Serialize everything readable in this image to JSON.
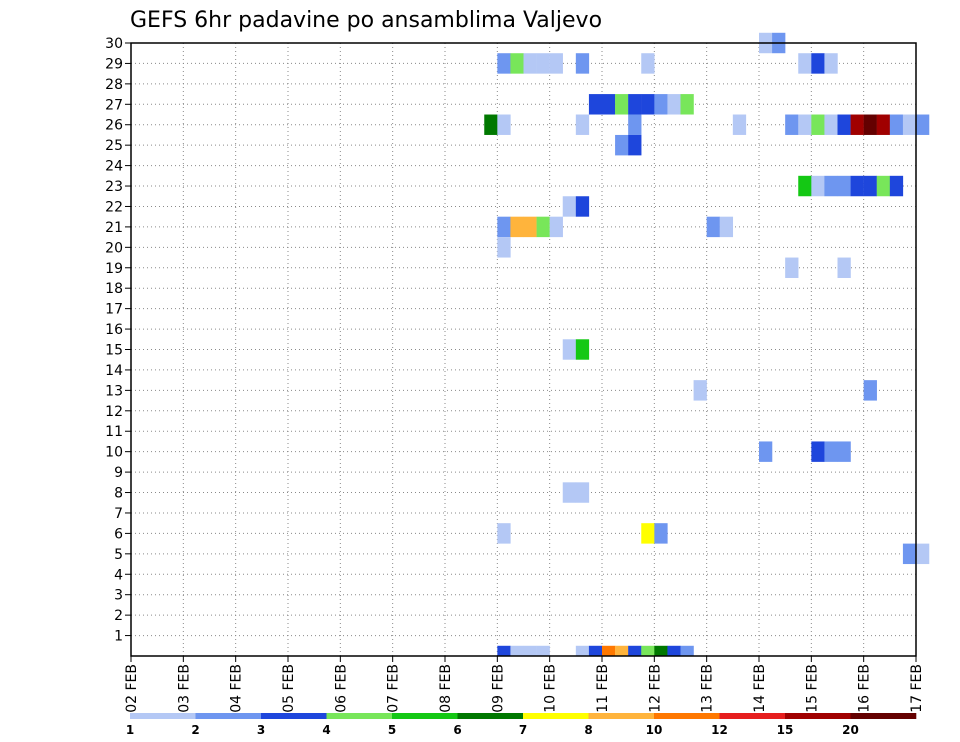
{
  "chart_data": {
    "type": "heatmap",
    "title": "GEFS 6hr padavine po ansamblima Valjevo",
    "x_ticks": [
      "02 FEB",
      "03 FEB",
      "04 FEB",
      "05 FEB",
      "06 FEB",
      "07 FEB",
      "08 FEB",
      "09 FEB",
      "10 FEB",
      "11 FEB",
      "12 FEB",
      "13 FEB",
      "14 FEB",
      "15 FEB",
      "16 FEB",
      "17 FEB"
    ],
    "y_range": [
      0,
      30
    ],
    "y_ticks": [
      1,
      2,
      3,
      4,
      5,
      6,
      7,
      8,
      9,
      10,
      11,
      12,
      13,
      14,
      15,
      16,
      17,
      18,
      19,
      20,
      21,
      22,
      23,
      24,
      25,
      26,
      27,
      28,
      29,
      30
    ],
    "grid": true,
    "legend": {
      "placement": "bottom",
      "boundaries": [
        "1",
        "2",
        "3",
        "4",
        "5",
        "6",
        "7",
        "8",
        "10",
        "12",
        "15",
        "20"
      ],
      "colors": [
        "#b4c8f5",
        "#6e96f0",
        "#1e46dc",
        "#78e65a",
        "#14c814",
        "#007800",
        "#ffff00",
        "#ffb43c",
        "#ff7800",
        "#e61e1e",
        "#a00000",
        "#640000"
      ]
    },
    "cells": [
      {
        "member": 30,
        "date": "14 FEB",
        "steps": [
          0,
          1
        ],
        "cls": [
          0,
          1
        ]
      },
      {
        "member": 29,
        "date": "09 FEB",
        "steps": [
          0,
          1,
          2,
          3,
          4
        ],
        "cls": [
          1,
          3,
          0,
          0,
          0
        ]
      },
      {
        "member": 29,
        "date": "10 FEB",
        "steps": [
          2
        ],
        "cls": [
          1
        ]
      },
      {
        "member": 29,
        "date": "11 FEB",
        "steps": [
          3
        ],
        "cls": [
          0
        ]
      },
      {
        "member": 29,
        "date": "14 FEB",
        "steps": [
          3
        ],
        "cls": [
          0
        ]
      },
      {
        "member": 29,
        "date": "15 FEB",
        "steps": [
          0,
          1
        ],
        "cls": [
          2,
          0
        ]
      },
      {
        "member": 27,
        "date": "10 FEB",
        "steps": [
          3
        ],
        "cls": [
          2
        ]
      },
      {
        "member": 27,
        "date": "11 FEB",
        "steps": [
          0,
          1,
          2,
          3
        ],
        "cls": [
          2,
          3,
          2,
          2
        ]
      },
      {
        "member": 27,
        "date": "12 FEB",
        "steps": [
          0,
          1,
          2
        ],
        "cls": [
          1,
          0,
          3
        ]
      },
      {
        "member": 26,
        "date": "08 FEB",
        "steps": [
          3
        ],
        "cls": [
          5
        ]
      },
      {
        "member": 26,
        "date": "09 FEB",
        "steps": [
          0
        ],
        "cls": [
          0
        ]
      },
      {
        "member": 26,
        "date": "10 FEB",
        "steps": [
          2
        ],
        "cls": [
          0
        ]
      },
      {
        "member": 26,
        "date": "11 FEB",
        "steps": [
          2
        ],
        "cls": [
          1
        ]
      },
      {
        "member": 26,
        "date": "13 FEB",
        "steps": [
          2
        ],
        "cls": [
          0
        ]
      },
      {
        "member": 26,
        "date": "14 FEB",
        "steps": [
          2,
          3
        ],
        "cls": [
          1,
          0
        ]
      },
      {
        "member": 26,
        "date": "15 FEB",
        "steps": [
          0,
          1,
          2,
          3
        ],
        "cls": [
          3,
          0,
          2,
          10
        ]
      },
      {
        "member": 26,
        "date": "16 FEB",
        "steps": [
          0,
          1,
          2,
          3
        ],
        "cls": [
          11,
          10,
          1,
          0
        ]
      },
      {
        "member": 26,
        "date": "17 FEB",
        "steps": [
          0
        ],
        "cls": [
          1
        ]
      },
      {
        "member": 25,
        "date": "11 FEB",
        "steps": [
          1,
          2
        ],
        "cls": [
          1,
          2
        ]
      },
      {
        "member": 23,
        "date": "14 FEB",
        "steps": [
          3
        ],
        "cls": [
          4
        ]
      },
      {
        "member": 23,
        "date": "15 FEB",
        "steps": [
          0,
          1,
          2,
          3
        ],
        "cls": [
          0,
          1,
          1,
          2
        ]
      },
      {
        "member": 23,
        "date": "16 FEB",
        "steps": [
          0,
          1,
          2
        ],
        "cls": [
          2,
          3,
          2
        ]
      },
      {
        "member": 22,
        "date": "10 FEB",
        "steps": [
          1,
          2
        ],
        "cls": [
          0,
          2
        ]
      },
      {
        "member": 21,
        "date": "09 FEB",
        "steps": [
          0,
          1,
          2,
          3
        ],
        "cls": [
          1,
          7,
          7,
          3
        ]
      },
      {
        "member": 21,
        "date": "10 FEB",
        "steps": [
          0
        ],
        "cls": [
          0
        ]
      },
      {
        "member": 21,
        "date": "13 FEB",
        "steps": [
          0,
          1
        ],
        "cls": [
          1,
          0
        ]
      },
      {
        "member": 20,
        "date": "09 FEB",
        "steps": [
          0
        ],
        "cls": [
          0
        ]
      },
      {
        "member": 19,
        "date": "14 FEB",
        "steps": [
          2
        ],
        "cls": [
          0
        ]
      },
      {
        "member": 19,
        "date": "15 FEB",
        "steps": [
          2
        ],
        "cls": [
          0
        ]
      },
      {
        "member": 15,
        "date": "10 FEB",
        "steps": [
          1,
          2
        ],
        "cls": [
          0,
          4
        ]
      },
      {
        "member": 13,
        "date": "12 FEB",
        "steps": [
          3
        ],
        "cls": [
          0
        ]
      },
      {
        "member": 13,
        "date": "16 FEB",
        "steps": [
          0
        ],
        "cls": [
          1
        ]
      },
      {
        "member": 10,
        "date": "14 FEB",
        "steps": [
          0
        ],
        "cls": [
          1
        ]
      },
      {
        "member": 10,
        "date": "15 FEB",
        "steps": [
          0,
          1,
          2
        ],
        "cls": [
          2,
          1,
          1
        ]
      },
      {
        "member": 8,
        "date": "10 FEB",
        "steps": [
          1,
          2
        ],
        "cls": [
          0,
          0
        ]
      },
      {
        "member": 6,
        "date": "09 FEB",
        "steps": [
          0
        ],
        "cls": [
          0
        ]
      },
      {
        "member": 6,
        "date": "11 FEB",
        "steps": [
          3
        ],
        "cls": [
          6
        ]
      },
      {
        "member": 6,
        "date": "12 FEB",
        "steps": [
          0
        ],
        "cls": [
          1
        ]
      },
      {
        "member": 5,
        "date": "16 FEB",
        "steps": [
          3
        ],
        "cls": [
          1
        ]
      },
      {
        "member": 5,
        "date": "17 FEB",
        "steps": [
          0
        ],
        "cls": [
          0
        ]
      },
      {
        "member": 0,
        "date": "09 FEB",
        "steps": [
          0,
          1,
          2,
          3
        ],
        "cls": [
          2,
          0,
          0,
          0
        ]
      },
      {
        "member": 0,
        "date": "10 FEB",
        "steps": [
          2,
          3
        ],
        "cls": [
          0,
          2
        ]
      },
      {
        "member": 0,
        "date": "11 FEB",
        "steps": [
          0,
          1,
          2,
          3
        ],
        "cls": [
          8,
          7,
          2,
          3
        ]
      },
      {
        "member": 0,
        "date": "12 FEB",
        "steps": [
          0,
          1,
          2
        ],
        "cls": [
          5,
          2,
          1
        ]
      }
    ]
  }
}
